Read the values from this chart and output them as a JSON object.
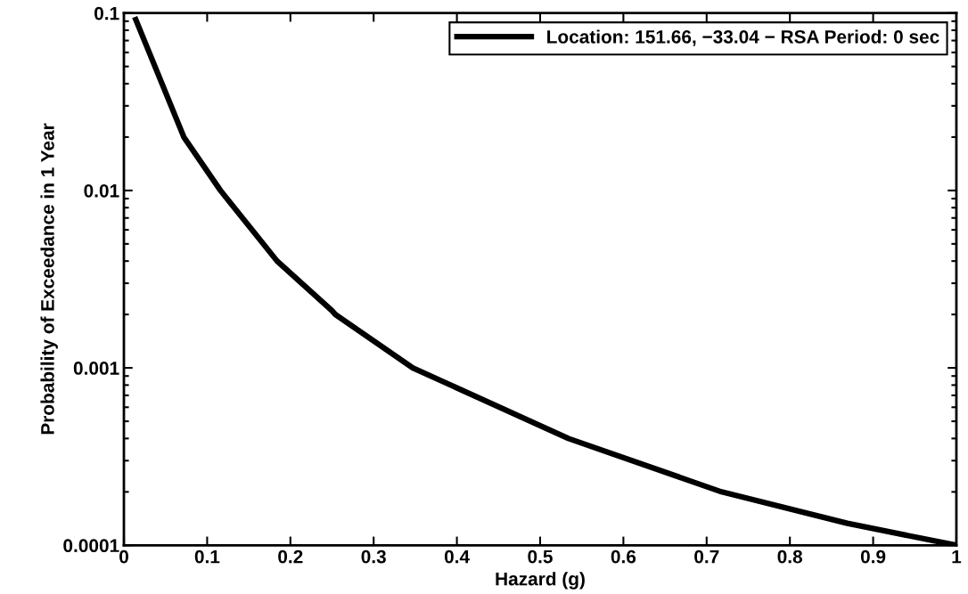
{
  "chart_data": {
    "type": "line",
    "xlabel": "Hazard (g)",
    "ylabel": "Probability of Exceedance in 1 Year",
    "x": [
      0.013,
      0.072,
      0.116,
      0.184,
      0.25,
      0.254,
      0.347,
      0.534,
      0.718,
      0.869,
      1.0
    ],
    "series": [
      {
        "name": "Location: 151.66, −33.04 − RSA Period: 0 sec",
        "color": "#000000",
        "values": [
          0.095,
          0.02,
          0.01,
          0.004,
          0.0021,
          0.002,
          0.001,
          0.0004,
          0.0002,
          0.000133,
          0.0001
        ]
      }
    ],
    "log": "y",
    "xlim": [
      0,
      1
    ],
    "ylim": [
      0.0001,
      0.1
    ],
    "xticks": [
      0,
      0.1,
      0.2,
      0.3,
      0.4,
      0.5,
      0.6,
      0.7,
      0.8,
      0.9,
      1
    ],
    "yticks": [
      0.0001,
      0.001,
      0.01,
      0.1
    ],
    "legend": "top right",
    "grid": false,
    "marker": "none",
    "line_style": "solid"
  }
}
